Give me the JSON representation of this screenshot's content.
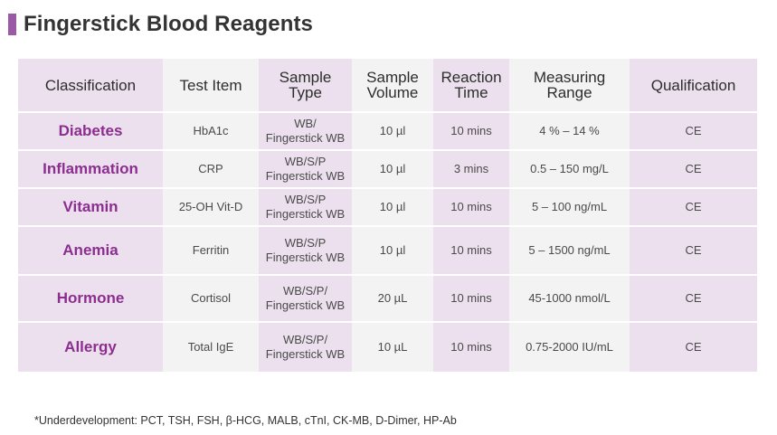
{
  "title": "Fingerstick Blood Reagents",
  "colors": {
    "accent": "#9b5aa6",
    "highlight_col": "#ece0ee",
    "row_bg": "#f3f3f3",
    "class_text": "#8b2e8f"
  },
  "table": {
    "headers": [
      [
        "Classification"
      ],
      [
        "Test Item"
      ],
      [
        "Sample",
        "Type"
      ],
      [
        "Sample",
        "Volume"
      ],
      [
        "Reaction",
        "Time"
      ],
      [
        "Measuring",
        "Range"
      ],
      [
        "Qualification"
      ]
    ],
    "rows": [
      {
        "classification": "Diabetes",
        "test_item": "HbA1c",
        "sample_type": [
          "WB/",
          "Fingerstick WB"
        ],
        "sample_volume": "10 µl",
        "reaction_time": "10 mins",
        "measuring_range": "4 % – 14 %",
        "qualification": "CE"
      },
      {
        "classification": "Inflammation",
        "test_item": "CRP",
        "sample_type": [
          "WB/S/P",
          "Fingerstick WB"
        ],
        "sample_volume": "10 µl",
        "reaction_time": "3 mins",
        "measuring_range": "0.5 – 150 mg/L",
        "qualification": "CE"
      },
      {
        "classification": "Vitamin",
        "test_item": "25-OH Vit-D",
        "sample_type": [
          "WB/S/P",
          "Fingerstick WB"
        ],
        "sample_volume": "10 µl",
        "reaction_time": "10 mins",
        "measuring_range": "5 – 100 ng/mL",
        "qualification": "CE"
      },
      {
        "classification": "Anemia",
        "test_item": "Ferritin",
        "sample_type": [
          "WB/S/P",
          "Fingerstick WB"
        ],
        "sample_volume": "10 µl",
        "reaction_time": "10 mins",
        "measuring_range": "5 – 1500 ng/mL",
        "qualification": "CE"
      },
      {
        "classification": "Hormone",
        "test_item": "Cortisol",
        "sample_type": [
          "WB/S/P/",
          "Fingerstick WB"
        ],
        "sample_volume": "20 µL",
        "reaction_time": "10 mins",
        "measuring_range": "45-1000 nmol/L",
        "qualification": "CE"
      },
      {
        "classification": "Allergy",
        "test_item": "Total IgE",
        "sample_type": [
          "WB/S/P/",
          "Fingerstick WB"
        ],
        "sample_volume": "10 µL",
        "reaction_time": "10 mins",
        "measuring_range": "0.75-2000 IU/mL",
        "qualification": "CE"
      }
    ]
  },
  "footnote": "*Underdevelopment: PCT, TSH, FSH, β-HCG, MALB, cTnI, CK-MB, D-Dimer, HP-Ab"
}
